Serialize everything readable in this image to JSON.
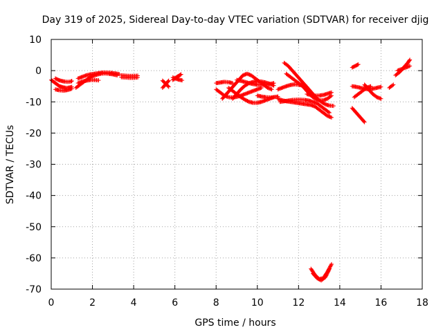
{
  "chart_data": {
    "type": "scatter",
    "title": "Day 319 of 2025, Sidereal Day-to-day VTEC variation (SDTVAR) for receiver djig",
    "xlabel": "GPS time / hours",
    "ylabel": "SDTVAR / TECUs",
    "xlim": [
      0,
      18
    ],
    "ylim": [
      -70,
      10
    ],
    "xticks": [
      "0",
      "2",
      "4",
      "6",
      "8",
      "10",
      "12",
      "14",
      "16",
      "18"
    ],
    "yticks": [
      "10",
      "0",
      "-10",
      "-20",
      "-30",
      "-40",
      "-50",
      "-60",
      "-70"
    ],
    "grid": true,
    "legend": "none",
    "marker_color": "#ff0000",
    "series": [
      {
        "x": [
          0,
          0.1,
          0.2,
          0.3,
          0.4,
          0.5,
          0.6,
          0.7,
          0.8,
          0.9,
          1.0
        ],
        "y": [
          -3,
          -3.5,
          -4,
          -4.5,
          -5,
          -5.2,
          -5.4,
          -5.5,
          -5.5,
          -5.4,
          -5.2
        ]
      },
      {
        "x": [
          0.2,
          0.35,
          0.5,
          0.65,
          0.8,
          0.95,
          1.0
        ],
        "y": [
          -2.5,
          -3,
          -3.3,
          -3.5,
          -3.6,
          -3.5,
          -3.3
        ]
      },
      {
        "x": [
          0.2,
          0.4,
          0.6,
          0.8,
          1.0
        ],
        "y": [
          -6,
          -6.3,
          -6.4,
          -6.2,
          -5.8
        ]
      },
      {
        "x": [
          1.2,
          1.4,
          1.6,
          1.8,
          2.0,
          2.2,
          2.4,
          2.6,
          2.8,
          3.0,
          3.2
        ],
        "y": [
          -5.5,
          -4.5,
          -3.5,
          -2.5,
          -1.8,
          -1.3,
          -1,
          -0.9,
          -1,
          -1.2,
          -1.5
        ]
      },
      {
        "x": [
          1.3,
          1.5,
          1.7,
          1.9,
          2.1,
          2.3,
          2.5,
          2.7,
          2.9,
          3.1,
          3.3
        ],
        "y": [
          -2.5,
          -2,
          -1.5,
          -1.2,
          -1,
          -0.8,
          -0.6,
          -0.6,
          -0.7,
          -0.9,
          -1.1
        ]
      },
      {
        "x": [
          1.3,
          1.5,
          1.7,
          1.9,
          2.1,
          2.3
        ],
        "y": [
          -4,
          -3.5,
          -3.2,
          -3,
          -3,
          -3.1
        ]
      },
      {
        "x": [
          3.4,
          3.6,
          3.8,
          4.0,
          4.2
        ],
        "y": [
          -1.5,
          -1.6,
          -1.7,
          -1.7,
          -1.6
        ]
      },
      {
        "x": [
          3.4,
          3.6,
          3.8,
          4.0,
          4.2
        ],
        "y": [
          -2.1,
          -2.2,
          -2.3,
          -2.3,
          -2.2
        ]
      },
      {
        "x": [
          5.4,
          5.5,
          5.6,
          5.7
        ],
        "y": [
          -5.5,
          -4.8,
          -4,
          -3.2
        ]
      },
      {
        "x": [
          5.4,
          5.5,
          5.6,
          5.7
        ],
        "y": [
          -3.2,
          -3.8,
          -4.5,
          -5.2
        ]
      },
      {
        "x": [
          5.9,
          6.0,
          6.1,
          6.2,
          6.3
        ],
        "y": [
          -3,
          -2.5,
          -2,
          -1.6,
          -1.2
        ]
      },
      {
        "x": [
          5.9,
          6.05,
          6.2,
          6.35
        ],
        "y": [
          -2.2,
          -2.6,
          -2.9,
          -3.1
        ]
      },
      {
        "x": [
          8.0,
          8.2,
          8.4,
          8.6,
          8.8,
          9.0,
          9.2,
          9.4,
          9.6,
          9.8,
          10.0,
          10.2
        ],
        "y": [
          -6,
          -7,
          -8,
          -8.5,
          -8.6,
          -8.4,
          -8,
          -7.5,
          -7,
          -6.5,
          -6,
          -5.5
        ]
      },
      {
        "x": [
          8.0,
          8.2,
          8.4,
          8.6,
          8.8
        ],
        "y": [
          -4,
          -3.8,
          -3.6,
          -3.7,
          -4
        ]
      },
      {
        "x": [
          8.3,
          8.5,
          8.7,
          8.9,
          9.1,
          9.3,
          9.5,
          9.7,
          9.9,
          10.1,
          10.3,
          10.5,
          10.7
        ],
        "y": [
          -9,
          -7.5,
          -6,
          -4.5,
          -3,
          -1.5,
          -1,
          -1.5,
          -2.5,
          -3.5,
          -4.5,
          -5.5,
          -6
        ]
      },
      {
        "x": [
          8.6,
          8.8,
          9.0,
          9.2,
          9.4,
          9.6,
          9.8,
          10.0,
          10.2,
          10.4,
          10.6,
          10.8
        ],
        "y": [
          -5.5,
          -6.5,
          -7.5,
          -8.5,
          -9.3,
          -10,
          -10.3,
          -10.3,
          -10,
          -9.5,
          -9,
          -8.5
        ]
      },
      {
        "x": [
          8.8,
          9.0,
          9.2,
          9.4,
          9.6,
          9.8,
          10.0,
          10.2,
          10.4,
          10.6,
          10.8
        ],
        "y": [
          -9,
          -7.5,
          -6,
          -4.8,
          -4,
          -3.6,
          -3.4,
          -3.5,
          -3.8,
          -4.2,
          -4.8
        ]
      },
      {
        "x": [
          9.0,
          9.2,
          9.4,
          9.6,
          9.8,
          10.0,
          10.2,
          10.4,
          10.6,
          10.8
        ],
        "y": [
          -3,
          -3.3,
          -3.6,
          -4,
          -4.3,
          -4.5,
          -4.6,
          -4.5,
          -4.3,
          -4
        ]
      },
      {
        "x": [
          10.0,
          10.2,
          10.4,
          10.6,
          10.8,
          11.0
        ],
        "y": [
          -8,
          -8.3,
          -8.5,
          -8.6,
          -8.5,
          -8.3
        ]
      },
      {
        "x": [
          11.0,
          11.2,
          11.4,
          11.6,
          11.8,
          12.0,
          12.2,
          12.4,
          12.6,
          12.8,
          13.0,
          13.2,
          13.4,
          13.6
        ],
        "y": [
          -9,
          -9.5,
          -9.8,
          -10,
          -10.2,
          -10.4,
          -10.6,
          -10.8,
          -11,
          -11.5,
          -12.5,
          -13.5,
          -14.5,
          -15
        ]
      },
      {
        "x": [
          11.1,
          11.3,
          11.5,
          11.7,
          11.9,
          12.1,
          12.3,
          12.5,
          12.7,
          12.9,
          13.1,
          13.3,
          13.5
        ],
        "y": [
          -10,
          -9.8,
          -9.6,
          -9.4,
          -9.3,
          -9.3,
          -9.4,
          -9.6,
          -10,
          -10.5,
          -11.5,
          -12.5,
          -13.5
        ]
      },
      {
        "x": [
          11.0,
          11.2,
          11.4,
          11.6,
          11.8,
          12.0,
          12.2,
          12.4
        ],
        "y": [
          -6,
          -5.5,
          -5,
          -4.6,
          -4.4,
          -4.5,
          -4.8,
          -5.2
        ]
      },
      {
        "x": [
          11.3,
          11.5,
          11.7,
          11.9,
          12.1,
          12.3,
          12.5,
          12.7,
          12.9,
          13.1,
          13.3,
          13.5,
          13.7
        ],
        "y": [
          2.5,
          1.5,
          0,
          -1.5,
          -3,
          -4.5,
          -6,
          -7.5,
          -9,
          -10,
          -10.8,
          -11.2,
          -11.3
        ]
      },
      {
        "x": [
          11.4,
          11.6,
          11.8,
          12.0,
          12.2,
          12.4,
          12.6,
          12.8,
          13.0,
          13.2,
          13.4,
          13.6
        ],
        "y": [
          -1,
          -2,
          -3,
          -4,
          -5,
          -6.5,
          -8,
          -9,
          -9.5,
          -9.5,
          -9,
          -8
        ]
      },
      {
        "x": [
          12.4,
          12.6,
          12.8,
          13.0,
          13.2,
          13.4,
          13.6
        ],
        "y": [
          -7.5,
          -7.8,
          -8,
          -8,
          -7.8,
          -7.4,
          -7
        ]
      },
      {
        "x": [
          12.6,
          12.8,
          13.0,
          13.2,
          13.4,
          13.6
        ],
        "y": [
          -63.5,
          -65.5,
          -66.8,
          -66.5,
          -64.5,
          -62
        ]
      },
      {
        "x": [
          12.7,
          12.9,
          13.1,
          13.3,
          13.5
        ],
        "y": [
          -65,
          -66.5,
          -67.2,
          -66.2,
          -63.5
        ]
      },
      {
        "x": [
          14.6,
          14.75,
          14.9
        ],
        "y": [
          1,
          1.5,
          2
        ]
      },
      {
        "x": [
          14.6,
          14.8,
          15.0,
          15.2
        ],
        "y": [
          -12,
          -13.5,
          -15,
          -16.5
        ]
      },
      {
        "x": [
          14.6,
          14.8,
          15.0,
          15.2,
          15.4,
          15.6,
          15.8,
          16.0
        ],
        "y": [
          -5,
          -5.2,
          -5.5,
          -5.8,
          -6,
          -5.8,
          -5.5,
          -5.2
        ]
      },
      {
        "x": [
          14.7,
          14.9,
          15.1,
          15.3,
          15.5
        ],
        "y": [
          -8.5,
          -7.5,
          -6.5,
          -5.5,
          -5
        ]
      },
      {
        "x": [
          15.2,
          15.4,
          15.6,
          15.8,
          16.0
        ],
        "y": [
          -4.5,
          -6,
          -7.5,
          -8.5,
          -9
        ]
      },
      {
        "x": [
          16.4,
          16.6
        ],
        "y": [
          -5.5,
          -4.5
        ]
      },
      {
        "x": [
          16.7,
          16.9,
          17.1,
          17.3,
          17.4
        ],
        "y": [
          -1.5,
          -0.5,
          1,
          2.5,
          3.5
        ]
      },
      {
        "x": [
          16.8,
          17.0,
          17.2,
          17.4
        ],
        "y": [
          0,
          0.5,
          1,
          1.5
        ]
      }
    ]
  }
}
